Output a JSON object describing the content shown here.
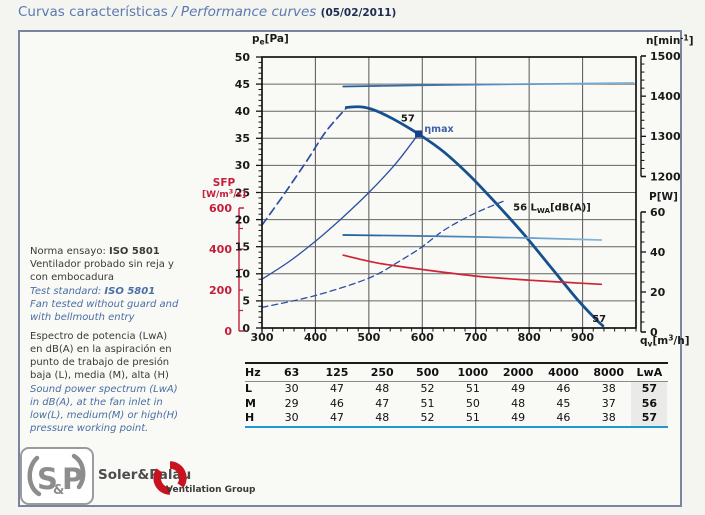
{
  "title": {
    "es": "Curvas características",
    "sep": "/",
    "en": "Performance curves",
    "date": "(05/02/2011)"
  },
  "notes": {
    "test_norma": {
      "label": "Norma ensayo: ",
      "standard": "ISO 5801",
      "text": "\nVentilador probado sin reja y\ncon embocadura"
    },
    "test_standard": {
      "label": "Test standard: ",
      "standard": "ISO 5801",
      "text": "\nFan tested without guard and\nwith bellmouth entry"
    },
    "spectrum_es": "Espectro de potencia (LwA)\nen dB(A) en la aspiración en\npunto de trabajo de presión\nbaja (L), media (M), alta (H)",
    "spectrum_en": "Sound power spectrum (LwA)\nin dB(A), at the fan inlet in\nlow(L), medium(M) or high(H)\npressure working point."
  },
  "chart_data": {
    "type": "line",
    "title": "Curvas características / Performance curves",
    "x_axis": {
      "label": "q_{v}[m^{3}/h]",
      "min": 300,
      "max": 1000,
      "major_tick": 100,
      "minor_tick": 20,
      "tick_labels": [
        300,
        400,
        500,
        600,
        700,
        800,
        900
      ]
    },
    "y_axes": {
      "pe": {
        "label": "p_{e}[Pa]",
        "min": 0,
        "max": 50,
        "major_tick": 5,
        "minor_tick": 1,
        "side": "left"
      },
      "sfp": {
        "label": "SFP",
        "units": "[W/m^{3}/s]",
        "min": 0,
        "max": 600,
        "label_tick": 200,
        "minor_tick": 100,
        "side": "left",
        "color": "#c41e3a"
      },
      "n": {
        "label": "n[min^{-1}]",
        "min": 1200,
        "max": 1500,
        "major_tick": 100,
        "minor_tick": 20,
        "side": "right"
      },
      "p": {
        "label": "P[W]",
        "min": 0,
        "max": 60,
        "major_tick": 20,
        "minor_tick": 5,
        "side": "right"
      }
    },
    "grid": true,
    "series": [
      {
        "name": "pressure-curve-unstable",
        "axis": "pe",
        "color": "#2d4fa0",
        "width": 1.7,
        "dash": "8,5",
        "points": [
          [
            300,
            19
          ],
          [
            340,
            24.5
          ],
          [
            385,
            31
          ],
          [
            420,
            36.3
          ],
          [
            458,
            40.6
          ]
        ]
      },
      {
        "name": "pressure-curve",
        "axis": "pe",
        "color": "#17508f",
        "width": 2.8,
        "points": [
          [
            458,
            40.7
          ],
          [
            485,
            40.8
          ],
          [
            510,
            40.2
          ],
          [
            545,
            38.6
          ],
          [
            593,
            35.8
          ],
          [
            640,
            32.5
          ],
          [
            690,
            28
          ],
          [
            740,
            22.8
          ],
          [
            790,
            17.3
          ],
          [
            840,
            11.3
          ],
          [
            890,
            5.3
          ],
          [
            925,
            1.6
          ],
          [
            938,
            0.4
          ]
        ]
      },
      {
        "name": "system-curve",
        "axis": "pe",
        "color": "#2d4fa0",
        "width": 1.3,
        "points": [
          [
            300,
            9
          ],
          [
            350,
            12.2
          ],
          [
            400,
            16
          ],
          [
            450,
            20.3
          ],
          [
            500,
            25
          ],
          [
            550,
            30.3
          ],
          [
            593,
            35.8
          ]
        ]
      },
      {
        "name": "sound-curve-lwa",
        "axis": "pe",
        "color": "#2d4fa0",
        "width": 1.3,
        "dash": "6,4",
        "points": [
          [
            300,
            3.8
          ],
          [
            400,
            6
          ],
          [
            500,
            9.2
          ],
          [
            560,
            12.5
          ],
          [
            600,
            15
          ],
          [
            640,
            18
          ],
          [
            695,
            21
          ],
          [
            752,
            23.4
          ]
        ]
      },
      {
        "name": "speed-curve",
        "axis": "n",
        "color": "#1d5c9d",
        "gradient": true,
        "width": 1.7,
        "points": [
          [
            452,
            1424
          ],
          [
            600,
            1427
          ],
          [
            800,
            1430
          ],
          [
            995,
            1433
          ]
        ]
      },
      {
        "name": "power-curve",
        "axis": "p",
        "color": "#1d5c9d",
        "gradient": true,
        "width": 1.7,
        "points": [
          [
            452,
            48.5
          ],
          [
            600,
            48
          ],
          [
            800,
            47
          ],
          [
            935,
            46
          ]
        ]
      },
      {
        "name": "sfp-curve",
        "axis": "sfp",
        "color": "#cf2435",
        "width": 1.7,
        "points": [
          [
            452,
            370
          ],
          [
            520,
            330
          ],
          [
            600,
            300
          ],
          [
            700,
            268
          ],
          [
            800,
            248
          ],
          [
            870,
            237
          ],
          [
            935,
            228
          ]
        ]
      }
    ],
    "working_point": {
      "q": 593,
      "pe": 35.8,
      "color": "#16418c"
    },
    "annotations": [
      {
        "text": "57",
        "q": 586,
        "pe": 38.1,
        "anchor": "end",
        "bold": true,
        "color": "#1a1a1a"
      },
      {
        "text": "ηmax",
        "q": 604,
        "pe": 36.2,
        "anchor": "start",
        "color": "#3f5fae",
        "size": 9.5
      },
      {
        "text": "56 L_{WA}[dB(A)]",
        "q": 770,
        "pe": 21.7,
        "anchor": "start",
        "color": "#1a1a1a"
      },
      {
        "text": "57",
        "q": 918,
        "pe": 1.1,
        "anchor": "start",
        "bold": true,
        "color": "#1a1a1a"
      }
    ]
  },
  "table": {
    "col_headers": [
      "Hz",
      "63",
      "125",
      "250",
      "500",
      "1000",
      "2000",
      "4000",
      "8000",
      "LwA"
    ],
    "rows": [
      {
        "label": "L",
        "values": [
          "30",
          "47",
          "48",
          "52",
          "51",
          "49",
          "46",
          "38"
        ],
        "lwa": "57"
      },
      {
        "label": "M",
        "values": [
          "29",
          "46",
          "47",
          "51",
          "50",
          "48",
          "45",
          "37"
        ],
        "lwa": "56"
      },
      {
        "label": "H",
        "values": [
          "30",
          "47",
          "48",
          "52",
          "51",
          "49",
          "46",
          "38"
        ],
        "lwa": "57"
      }
    ]
  },
  "footer": {
    "logo_text": "S&P",
    "brand": "Soler&Palau",
    "group": "Ventilation Group"
  }
}
